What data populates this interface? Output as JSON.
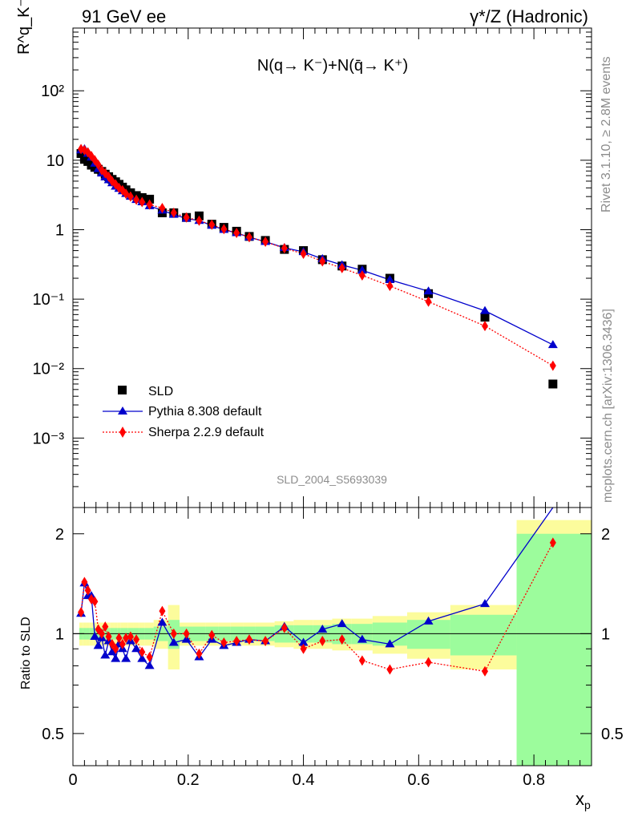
{
  "header": {
    "left": "91 GeV ee",
    "right": "γ*/Z (Hadronic)"
  },
  "side_text": {
    "rivet": "Rivet 3.1.10, ≥ 2.8M events",
    "mcplots": "mcplots.cern.ch [arXiv:1306.3436]"
  },
  "chart_data": [
    {
      "type": "scatter",
      "panel": "main",
      "title": "N(q→ K⁻)+N(q̄→ K⁺)",
      "ylabel": "R^q_K⁻",
      "xlabel": "x_p",
      "watermark": "SLD_2004_S5693039",
      "log_y": true,
      "xlim": [
        0,
        0.9
      ],
      "ylim": [
        0.0001,
        800
      ],
      "y_tick_labels": [
        "10⁻³",
        "10⁻²",
        "10⁻¹",
        "1",
        "10",
        "10²"
      ],
      "legend": {
        "position": "lower-left",
        "entries": [
          "SLD",
          "Pythia 8.308 default",
          "Sherpa 2.2.9 default"
        ]
      },
      "x": [
        0.014,
        0.02,
        0.026,
        0.032,
        0.038,
        0.044,
        0.05,
        0.056,
        0.062,
        0.068,
        0.074,
        0.08,
        0.086,
        0.092,
        0.1,
        0.11,
        0.12,
        0.133,
        0.155,
        0.175,
        0.197,
        0.219,
        0.241,
        0.262,
        0.284,
        0.306,
        0.334,
        0.367,
        0.4,
        0.433,
        0.467,
        0.502,
        0.55,
        0.617,
        0.715,
        0.833
      ],
      "series": [
        {
          "name": "SLD",
          "style": "black-square",
          "values": [
            12.5,
            10.3,
            9.6,
            8.5,
            7.9,
            7.4,
            6.9,
            6.3,
            5.8,
            5.3,
            4.9,
            4.5,
            4.1,
            3.75,
            3.4,
            3.1,
            2.9,
            2.75,
            1.75,
            1.75,
            1.5,
            1.58,
            1.2,
            1.08,
            0.95,
            0.8,
            0.7,
            0.52,
            0.5,
            0.37,
            0.3,
            0.27,
            0.2,
            0.12,
            0.055,
            0.006
          ]
        },
        {
          "name": "Pythia 8.308 default",
          "style": "blue-triangle-line",
          "values": [
            14.0,
            14.5,
            12.5,
            11.0,
            9.0,
            7.5,
            6.5,
            5.7,
            5.2,
            4.7,
            4.2,
            3.9,
            3.6,
            3.3,
            3.0,
            2.7,
            2.5,
            2.2,
            1.9,
            1.65,
            1.45,
            1.35,
            1.15,
            1.0,
            0.9,
            0.78,
            0.67,
            0.55,
            0.48,
            0.38,
            0.31,
            0.26,
            0.19,
            0.13,
            0.068,
            0.022
          ]
        },
        {
          "name": "Sherpa 2.2.9 default",
          "style": "red-diamond-dotted",
          "values": [
            14.5,
            14.0,
            13.0,
            11.5,
            10.0,
            8.6,
            7.2,
            6.5,
            5.8,
            5.0,
            4.5,
            4.0,
            3.7,
            3.3,
            3.0,
            2.7,
            2.5,
            2.3,
            2.05,
            1.75,
            1.5,
            1.35,
            1.18,
            1.02,
            0.9,
            0.78,
            0.67,
            0.54,
            0.45,
            0.35,
            0.28,
            0.22,
            0.155,
            0.092,
            0.041,
            0.011
          ]
        }
      ]
    },
    {
      "type": "line",
      "panel": "ratio",
      "ylabel": "Ratio to SLD",
      "xlabel": "x_p",
      "log_y": true,
      "xlim": [
        0,
        0.9
      ],
      "ylim": [
        0.4,
        2.4
      ],
      "y_ticks": [
        0.5,
        1,
        2
      ],
      "x_ticks": [
        0,
        0.2,
        0.4,
        0.6,
        0.8
      ],
      "reference_line": 1,
      "x": [
        0.014,
        0.02,
        0.026,
        0.032,
        0.038,
        0.044,
        0.05,
        0.056,
        0.062,
        0.068,
        0.074,
        0.08,
        0.086,
        0.092,
        0.1,
        0.11,
        0.12,
        0.133,
        0.155,
        0.175,
        0.197,
        0.219,
        0.241,
        0.262,
        0.284,
        0.306,
        0.334,
        0.367,
        0.4,
        0.433,
        0.467,
        0.502,
        0.55,
        0.617,
        0.715,
        0.833
      ],
      "bin_edges": [
        0.011,
        0.017,
        0.023,
        0.029,
        0.035,
        0.041,
        0.047,
        0.053,
        0.059,
        0.065,
        0.071,
        0.077,
        0.083,
        0.089,
        0.095,
        0.105,
        0.115,
        0.125,
        0.14,
        0.165,
        0.185,
        0.208,
        0.23,
        0.252,
        0.273,
        0.295,
        0.317,
        0.35,
        0.383,
        0.417,
        0.45,
        0.483,
        0.52,
        0.58,
        0.655,
        0.77,
        0.9
      ],
      "band_stat": [
        0.04,
        0.04,
        0.04,
        0.04,
        0.04,
        0.04,
        0.04,
        0.04,
        0.04,
        0.04,
        0.04,
        0.04,
        0.04,
        0.04,
        0.04,
        0.04,
        0.04,
        0.04,
        0.05,
        0.1,
        0.05,
        0.05,
        0.05,
        0.05,
        0.05,
        0.05,
        0.05,
        0.06,
        0.06,
        0.06,
        0.07,
        0.07,
        0.08,
        0.1,
        0.14,
        1.0
      ],
      "band_total": [
        0.08,
        0.08,
        0.08,
        0.08,
        0.08,
        0.08,
        0.08,
        0.08,
        0.08,
        0.08,
        0.08,
        0.08,
        0.08,
        0.08,
        0.08,
        0.08,
        0.08,
        0.08,
        0.1,
        0.22,
        0.08,
        0.08,
        0.08,
        0.08,
        0.08,
        0.08,
        0.08,
        0.09,
        0.1,
        0.1,
        0.11,
        0.11,
        0.13,
        0.16,
        0.22,
        1.2
      ],
      "band_colors": {
        "stat": "#9cfc9c",
        "total": "#fcfc9c"
      },
      "series": [
        {
          "name": "Pythia 8.308 default",
          "color": "#0000cc",
          "values": [
            1.15,
            1.42,
            1.3,
            1.3,
            0.98,
            0.92,
            0.97,
            0.86,
            0.95,
            0.88,
            0.84,
            0.93,
            0.9,
            0.84,
            0.95,
            0.9,
            0.84,
            0.8,
            1.08,
            0.94,
            0.96,
            0.85,
            0.96,
            0.92,
            0.94,
            0.96,
            0.95,
            1.05,
            0.94,
            1.03,
            1.07,
            0.96,
            0.93,
            1.09,
            1.23,
            3.4
          ]
        },
        {
          "name": "Sherpa 2.2.9 default",
          "color": "#ff0000",
          "values": [
            1.16,
            1.43,
            1.35,
            1.27,
            1.25,
            1.03,
            1.0,
            1.05,
            0.98,
            0.93,
            0.9,
            0.97,
            0.93,
            0.97,
            0.98,
            0.96,
            0.88,
            0.85,
            1.17,
            1.0,
            1.0,
            0.87,
            0.99,
            0.94,
            0.95,
            0.96,
            0.95,
            1.04,
            0.9,
            0.95,
            0.96,
            0.83,
            0.78,
            0.82,
            0.77,
            1.88
          ]
        }
      ]
    }
  ]
}
